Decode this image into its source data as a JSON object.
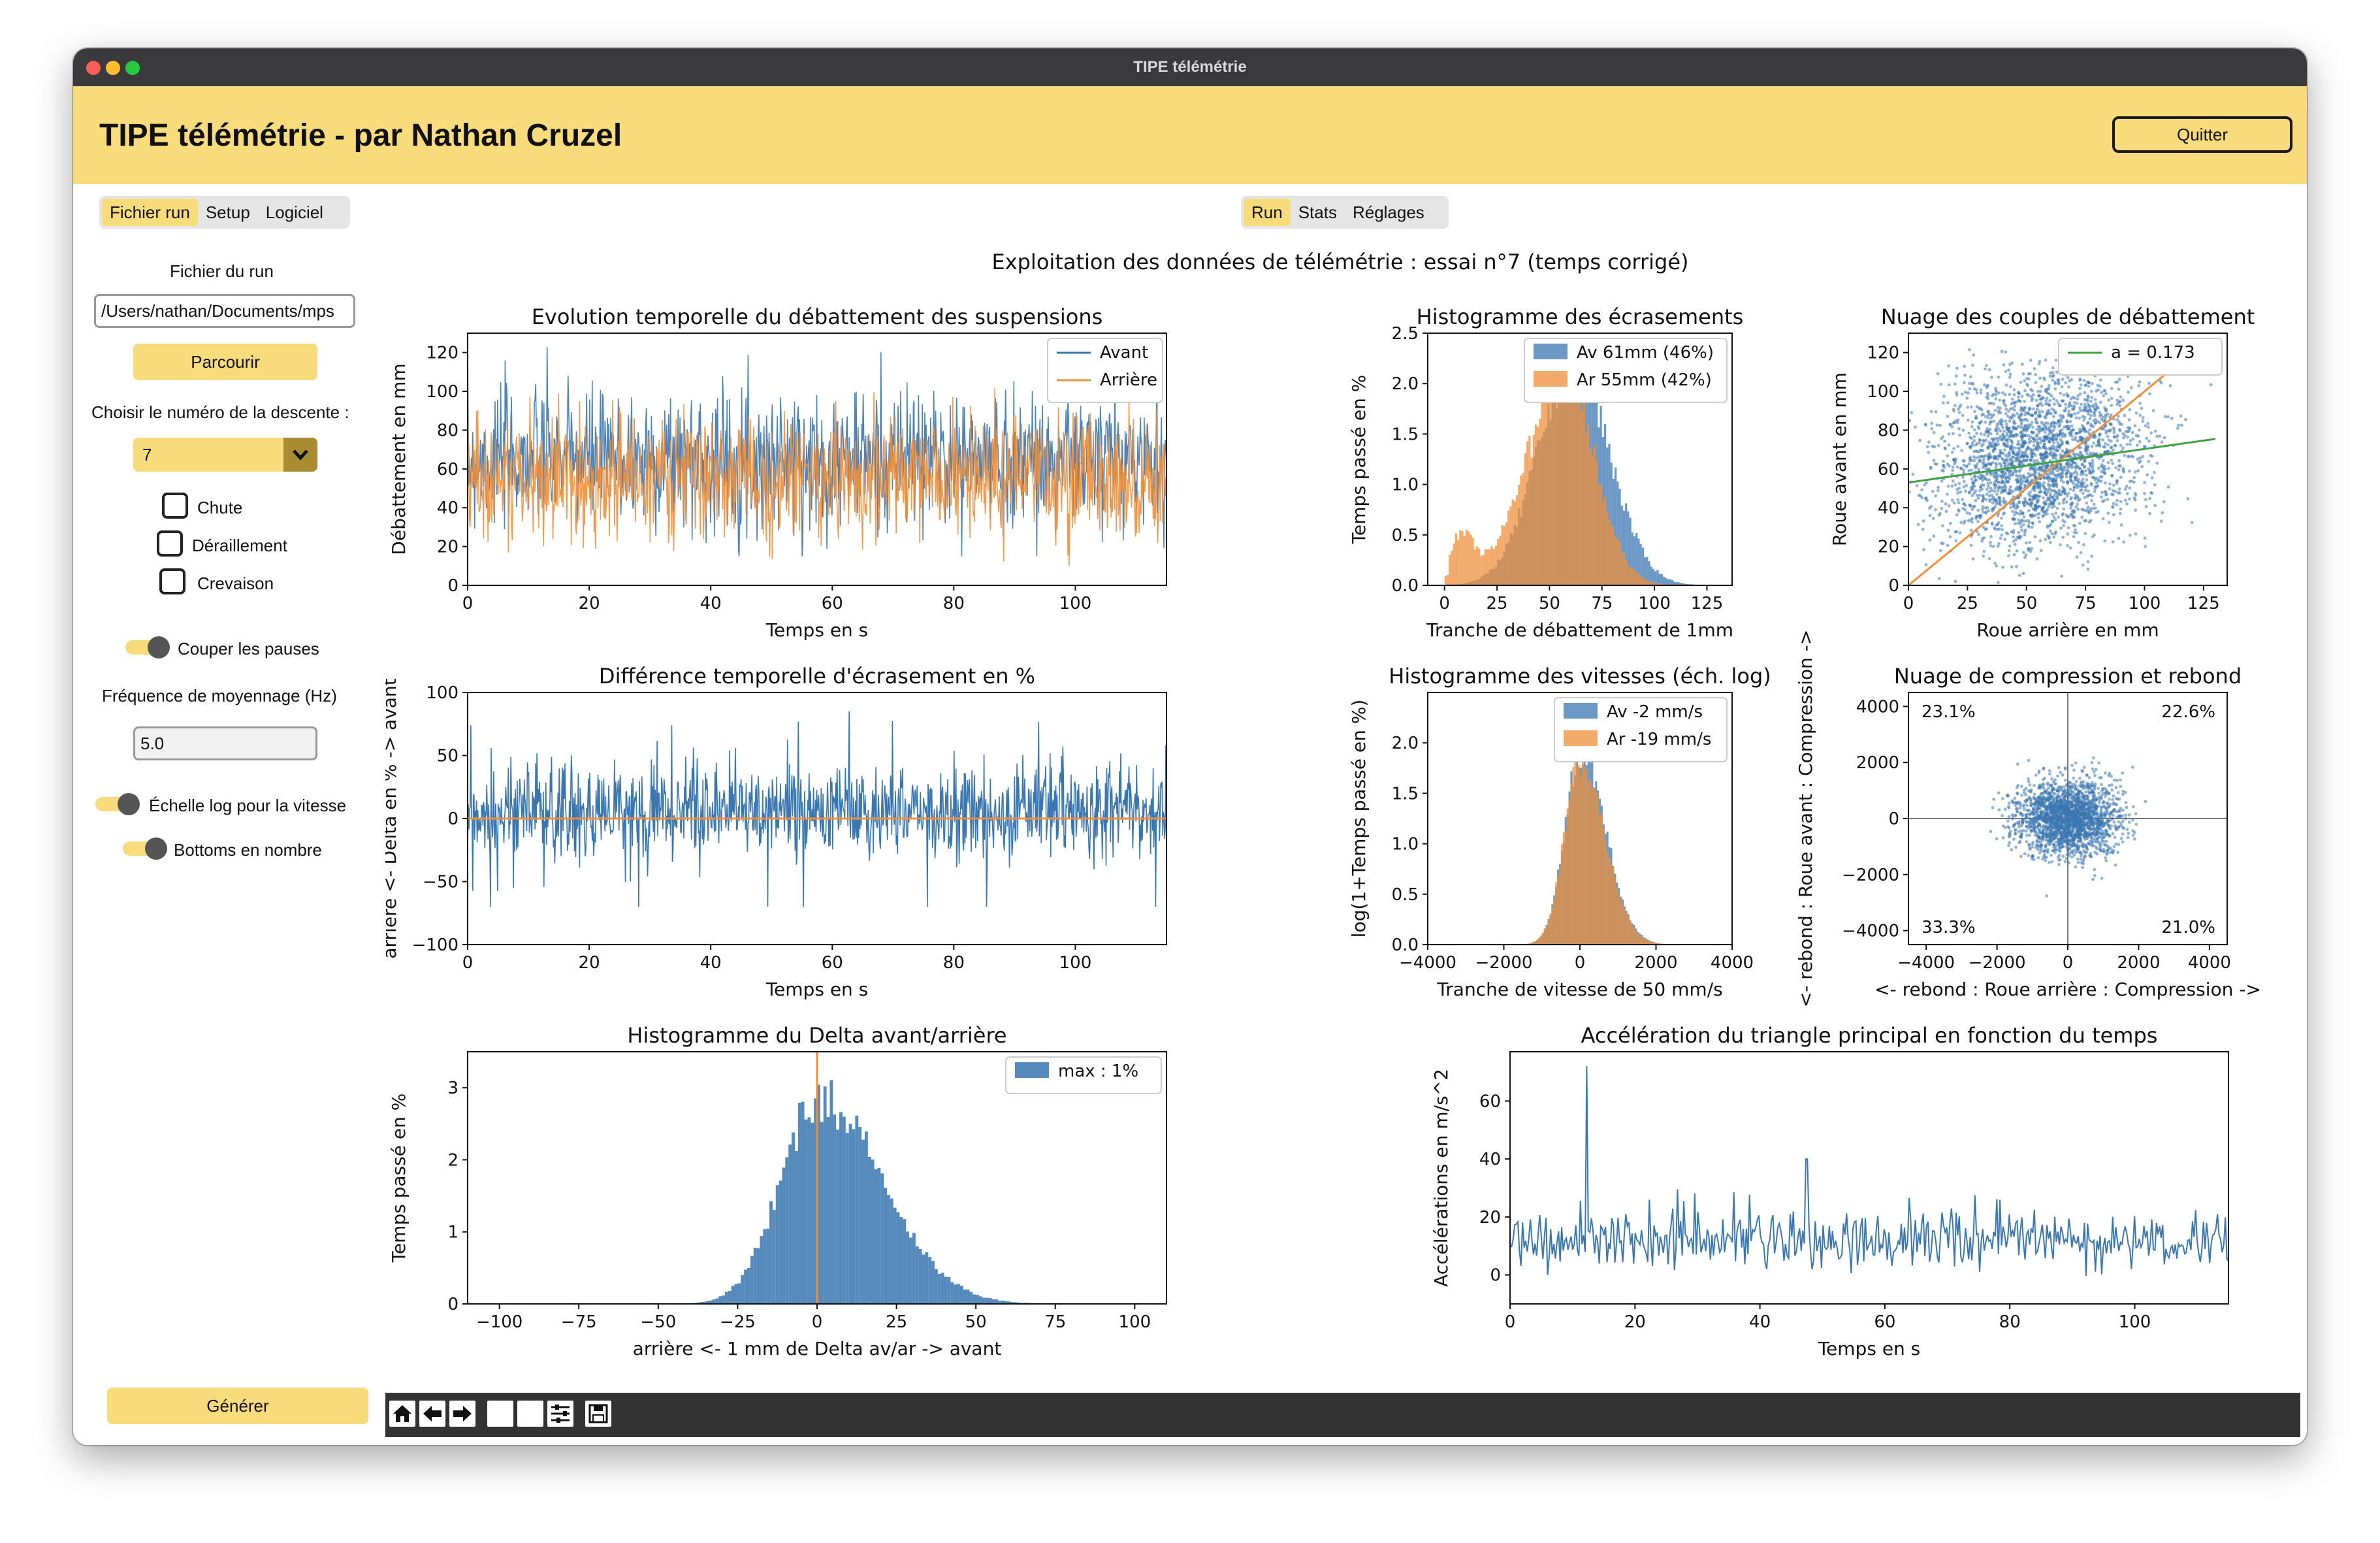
{
  "window": {
    "title": "TIPE télémétrie"
  },
  "header": {
    "title": "TIPE télémétrie - par Nathan Cruzel",
    "quit_label": "Quitter"
  },
  "left_tabs": [
    {
      "label": "Fichier run",
      "active": true
    },
    {
      "label": "Setup",
      "active": false
    },
    {
      "label": "Logiciel",
      "active": false
    }
  ],
  "center_tabs": [
    {
      "label": "Run",
      "active": true
    },
    {
      "label": "Stats",
      "active": false
    },
    {
      "label": "Réglages",
      "active": false
    }
  ],
  "sidebar": {
    "file_label": "Fichier du run",
    "file_path": "/Users/nathan/Documents/mps",
    "browse_label": "Parcourir",
    "descent_label": "Choisir le numéro de la descente :",
    "descent_value": "7",
    "checkboxes": [
      {
        "label": "Chute",
        "checked": false
      },
      {
        "label": "Déraillement",
        "checked": false
      },
      {
        "label": "Crevaison",
        "checked": false
      }
    ],
    "toggle_pauses": "Couper les pauses",
    "freq_label": "Fréquence de moyennage (Hz)",
    "freq_value": "5.0",
    "toggle_log": "Échelle log pour la vitesse",
    "toggle_bottoms": "Bottoms en nombre",
    "generate_label": "Générer"
  },
  "figure": {
    "suptitle": "Exploitation des données de télémétrie : essai n°7 (temps corrigé)"
  },
  "colors": {
    "blue": "#3a76b0",
    "orange": "#ef8f3a",
    "green": "#3fa13f",
    "accent": "#f8db7b"
  },
  "chart_data": [
    {
      "id": "p1",
      "type": "line",
      "title": "Evolution temporelle du débattement des suspensions",
      "xlabel": "Temps en s",
      "ylabel": "Débattement en mm",
      "xlim": [
        0,
        115
      ],
      "ylim": [
        0,
        130
      ],
      "xticks": [
        "0",
        "20",
        "40",
        "60",
        "80",
        "100"
      ],
      "yticks": [
        "0",
        "20",
        "40",
        "60",
        "80",
        "100",
        "120"
      ],
      "series": [
        {
          "name": "Avant",
          "mean": 65,
          "amp": 25,
          "min": 15,
          "max": 125,
          "samples": 1100
        },
        {
          "name": "Arrière",
          "mean": 55,
          "amp": 22,
          "min": 2,
          "max": 122,
          "samples": 1100
        }
      ]
    },
    {
      "id": "p2",
      "type": "bar",
      "title": "Histogramme des écrasements",
      "xlabel": "Tranche de débattement de 1mm",
      "ylabel": "Temps passé en %",
      "xlim": [
        -8,
        137
      ],
      "ylim": [
        0,
        2.5
      ],
      "xticks": [
        "0",
        "25",
        "50",
        "75",
        "100",
        "125"
      ],
      "yticks": [
        "0.0",
        "0.5",
        "1.0",
        "1.5",
        "2.0",
        "2.5"
      ],
      "series": [
        {
          "name": "Av 61mm (46%)",
          "peak_x": 61,
          "peak_y": 2.2,
          "spread": 17
        },
        {
          "name": "Ar 55mm (42%)",
          "peak_x": 55,
          "peak_y": 2.2,
          "spread": 15
        }
      ]
    },
    {
      "id": "p3",
      "type": "scatter",
      "title": "Nuage des couples de débattement",
      "xlabel": "Roue arrière en mm",
      "ylabel": "Roue avant en mm",
      "xlim": [
        0,
        135
      ],
      "ylim": [
        0,
        130
      ],
      "xticks": [
        "0",
        "25",
        "50",
        "75",
        "100",
        "125"
      ],
      "yticks": [
        "0",
        "20",
        "40",
        "60",
        "80",
        "100",
        "120"
      ],
      "fit_label": "a = 0.173",
      "fit_slope": 0.173,
      "fit_intercept": 53
    },
    {
      "id": "p4",
      "type": "line",
      "title": "Différence temporelle d'écrasement en %",
      "xlabel": "Temps en s",
      "ylabel": "arriere <- Delta en % -> avant",
      "xlim": [
        0,
        115
      ],
      "ylim": [
        -100,
        100
      ],
      "xticks": [
        "0",
        "20",
        "40",
        "60",
        "80",
        "100"
      ],
      "yticks": [
        "−100",
        "−50",
        "0",
        "50",
        "100"
      ]
    },
    {
      "id": "p5",
      "type": "bar",
      "title": "Histogramme des vitesses (éch. log)",
      "xlabel": "Tranche de vitesse de 50 mm/s",
      "ylabel": "log(1+Temps passé en %)",
      "xlim": [
        -4000,
        4000
      ],
      "ylim": [
        0,
        2.5
      ],
      "xticks": [
        "−4000",
        "−2000",
        "0",
        "2000",
        "4000"
      ],
      "yticks": [
        "0.0",
        "0.5",
        "1.0",
        "1.5",
        "2.0"
      ],
      "series": [
        {
          "name": "Av -2 mm/s",
          "peak_x": -2,
          "peak_y": 1.9
        },
        {
          "name": "Ar -19 mm/s",
          "peak_x": -19,
          "peak_y": 1.8
        }
      ]
    },
    {
      "id": "p6",
      "type": "scatter",
      "title": "Nuage de compression et rebond",
      "xlabel": "<- rebond : Roue arrière : Compression ->",
      "ylabel": "<- rebond : Roue avant : Compression ->",
      "xlim": [
        -4500,
        4500
      ],
      "ylim": [
        -4500,
        4500
      ],
      "xticks": [
        "−4000",
        "−2000",
        "0",
        "2000",
        "4000"
      ],
      "yticks": [
        "−4000",
        "−2000",
        "0",
        "2000",
        "4000"
      ],
      "quadrants": {
        "tl": "23.1%",
        "tr": "22.6%",
        "bl": "33.3%",
        "br": "21.0%"
      }
    },
    {
      "id": "p7",
      "type": "bar",
      "title": "Histogramme du Delta avant/arrière",
      "xlabel": "arrière <- 1 mm de Delta av/ar -> avant",
      "ylabel": "Temps passé en %",
      "xlim": [
        -110,
        110
      ],
      "ylim": [
        0,
        3.5
      ],
      "xticks": [
        "−100",
        "−75",
        "−50",
        "−25",
        "0",
        "25",
        "50",
        "75",
        "100"
      ],
      "yticks": [
        "0",
        "1",
        "2",
        "3"
      ],
      "legend": "max : 1%",
      "peak_x": 0,
      "peak_y": 2.85
    },
    {
      "id": "p8",
      "type": "line",
      "title": "Accélération du triangle principal en fonction du temps",
      "xlabel": "Temps en s",
      "ylabel": "Accélérations en m/s^2",
      "xlim": [
        0,
        115
      ],
      "ylim": [
        -10,
        77
      ],
      "xticks": [
        "0",
        "20",
        "40",
        "60",
        "80",
        "100"
      ],
      "yticks": [
        "0",
        "20",
        "40",
        "60"
      ]
    }
  ]
}
